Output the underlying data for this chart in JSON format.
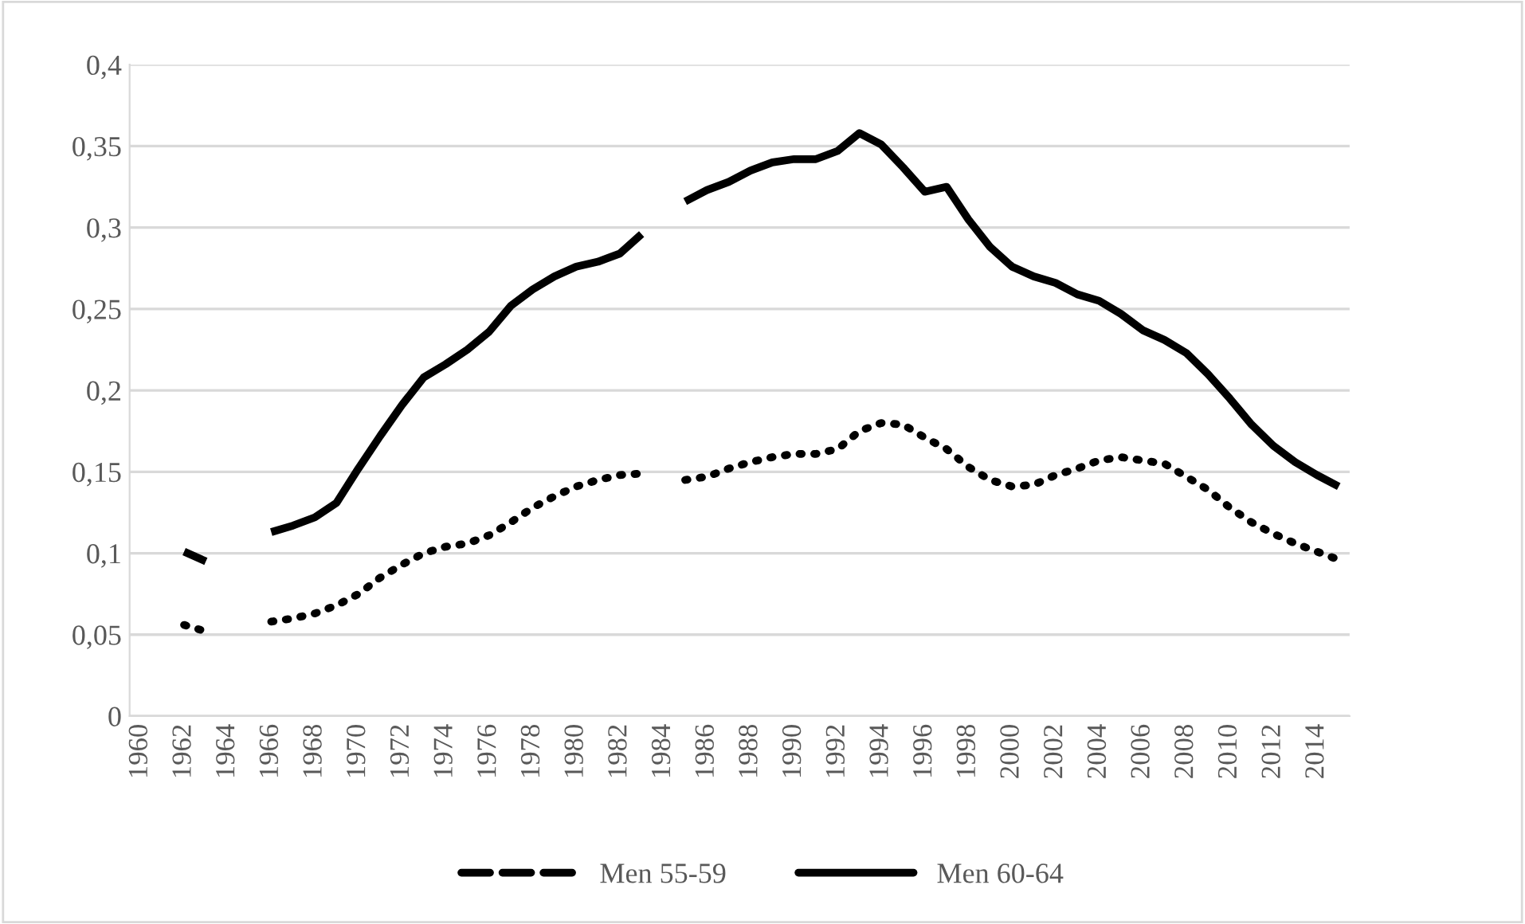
{
  "chart_data": {
    "type": "line",
    "categories": [
      "1960",
      null,
      "1962",
      null,
      "1964",
      null,
      "1966",
      null,
      "1968",
      null,
      "1970",
      null,
      "1972",
      null,
      "1974",
      null,
      "1976",
      null,
      "1978",
      null,
      "1980",
      null,
      "1982",
      null,
      "1984",
      null,
      "1986",
      null,
      "1988",
      null,
      "1990",
      null,
      "1992",
      null,
      "1994",
      null,
      "1996",
      null,
      "1998",
      null,
      "2000",
      null,
      "2002",
      null,
      "2004",
      null,
      "2006",
      null,
      "2008",
      null,
      "2010",
      null,
      "2012",
      null,
      "2014",
      null
    ],
    "series": [
      {
        "name": "Men 55-59",
        "color": "#000000",
        "line_style": "dotted",
        "values": [
          null,
          null,
          0.056,
          0.052,
          null,
          null,
          0.058,
          0.06,
          0.063,
          0.068,
          0.075,
          0.085,
          0.093,
          0.1,
          0.104,
          0.106,
          0.111,
          0.119,
          0.128,
          0.135,
          0.141,
          0.145,
          0.148,
          0.149,
          null,
          0.145,
          0.147,
          0.152,
          0.156,
          0.159,
          0.161,
          0.161,
          0.164,
          0.175,
          0.18,
          0.179,
          0.171,
          0.164,
          0.153,
          0.145,
          0.141,
          0.142,
          0.148,
          0.152,
          0.157,
          0.159,
          0.157,
          0.155,
          0.147,
          0.139,
          0.128,
          0.119,
          0.112,
          0.106,
          0.101,
          0.096
        ]
      },
      {
        "name": "Men 60-64",
        "color": "#000000",
        "line_style": "solid",
        "values": [
          null,
          null,
          0.101,
          0.095,
          null,
          null,
          0.113,
          0.117,
          0.122,
          0.131,
          0.152,
          0.172,
          0.191,
          0.208,
          0.216,
          0.225,
          0.236,
          0.252,
          0.262,
          0.27,
          0.276,
          0.279,
          0.284,
          0.296,
          null,
          0.316,
          0.323,
          0.328,
          0.335,
          0.34,
          0.342,
          0.342,
          0.347,
          0.358,
          0.351,
          0.337,
          0.322,
          0.325,
          0.305,
          0.288,
          0.276,
          0.27,
          0.266,
          0.259,
          0.255,
          0.247,
          0.237,
          0.231,
          0.223,
          0.21,
          0.195,
          0.179,
          0.166,
          0.156,
          0.148,
          0.141
        ]
      }
    ],
    "ylim": [
      0,
      0.4
    ],
    "yticks": [
      0,
      {
        "value": 0.05,
        "label": "0,05"
      },
      {
        "value": 0.1,
        "label": "0,1"
      },
      {
        "value": 0.15,
        "label": "0,15"
      },
      {
        "value": 0.2,
        "label": "0,2"
      },
      {
        "value": 0.25,
        "label": "0,25"
      },
      {
        "value": 0.3,
        "label": "0,3"
      },
      {
        "value": 0.35,
        "label": "0,35"
      },
      {
        "value": 0.4,
        "label": "0,4"
      }
    ],
    "grid": "y",
    "legend": "bottom"
  }
}
